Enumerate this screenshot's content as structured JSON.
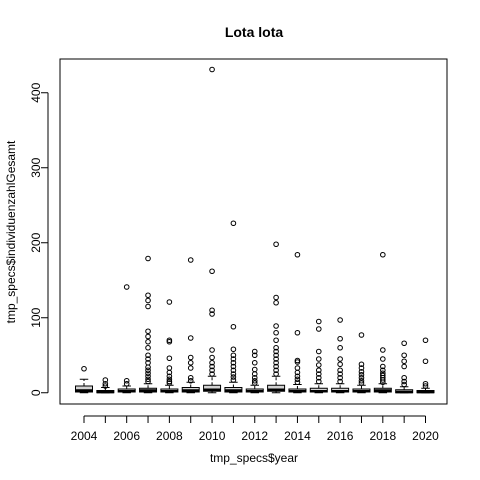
{
  "chart_data": {
    "type": "boxplot",
    "title": "Lota lota",
    "xlabel": "tmp_specs$year",
    "ylabel": "tmp_specs$individuenzahlGesamt",
    "ylim": [
      -15,
      445
    ],
    "y_ticks": [
      0,
      100,
      200,
      300,
      400
    ],
    "x_tick_labels": [
      "2004",
      "2006",
      "2008",
      "2010",
      "2012",
      "2014",
      "2016",
      "2018",
      "2020"
    ],
    "categories": [
      "2004",
      "2005",
      "2006",
      "2007",
      "2008",
      "2009",
      "2010",
      "2011",
      "2012",
      "2013",
      "2014",
      "2015",
      "2016",
      "2017",
      "2018",
      "2019",
      "2020"
    ],
    "boxes": [
      {
        "year": "2004",
        "min": 0,
        "q1": 1,
        "median": 3,
        "q3": 9,
        "max": 18,
        "outliers": [
          32
        ]
      },
      {
        "year": "2005",
        "min": 0,
        "q1": 0,
        "median": 1,
        "q3": 3,
        "max": 7,
        "outliers": [
          9,
          12,
          17
        ]
      },
      {
        "year": "2006",
        "min": 0,
        "q1": 1,
        "median": 2,
        "q3": 5,
        "max": 9,
        "outliers": [
          12,
          16,
          141
        ]
      },
      {
        "year": "2007",
        "min": 0,
        "q1": 1,
        "median": 3,
        "q3": 6,
        "max": 12,
        "outliers": [
          15,
          18,
          22,
          26,
          30,
          34,
          40,
          45,
          50,
          60,
          68,
          75,
          82,
          115,
          123,
          130,
          179
        ]
      },
      {
        "year": "2008",
        "min": 0,
        "q1": 1,
        "median": 2,
        "q3": 5,
        "max": 10,
        "outliers": [
          13,
          15,
          18,
          22,
          27,
          33,
          46,
          68,
          70,
          121
        ]
      },
      {
        "year": "2009",
        "min": 0,
        "q1": 1,
        "median": 3,
        "q3": 7,
        "max": 14,
        "outliers": [
          16,
          20,
          33,
          40,
          47,
          73,
          177
        ]
      },
      {
        "year": "2010",
        "min": 0,
        "q1": 2,
        "median": 4,
        "q3": 10,
        "max": 22,
        "outliers": [
          25,
          30,
          35,
          40,
          47,
          57,
          105,
          110,
          162,
          431
        ]
      },
      {
        "year": "2011",
        "min": 0,
        "q1": 1,
        "median": 3,
        "q3": 7,
        "max": 14,
        "outliers": [
          17,
          21,
          25,
          30,
          35,
          40,
          45,
          50,
          58,
          88,
          226
        ]
      },
      {
        "year": "2012",
        "min": 0,
        "q1": 1,
        "median": 2,
        "q3": 5,
        "max": 10,
        "outliers": [
          13,
          16,
          20,
          25,
          31,
          40,
          50,
          55
        ]
      },
      {
        "year": "2013",
        "min": 0,
        "q1": 2,
        "median": 4,
        "q3": 10,
        "max": 22,
        "outliers": [
          25,
          30,
          35,
          40,
          45,
          50,
          55,
          60,
          70,
          80,
          89,
          120,
          127,
          198
        ]
      },
      {
        "year": "2014",
        "min": 0,
        "q1": 1,
        "median": 2,
        "q3": 5,
        "max": 11,
        "outliers": [
          14,
          18,
          22,
          27,
          33,
          41,
          43,
          80,
          184
        ]
      },
      {
        "year": "2015",
        "min": 0,
        "q1": 1,
        "median": 2,
        "q3": 6,
        "max": 12,
        "outliers": [
          15,
          20,
          25,
          30,
          37,
          45,
          55,
          85,
          95
        ]
      },
      {
        "year": "2016",
        "min": 0,
        "q1": 1,
        "median": 2,
        "q3": 6,
        "max": 12,
        "outliers": [
          15,
          20,
          25,
          30,
          38,
          45,
          60,
          72,
          97
        ]
      },
      {
        "year": "2017",
        "min": 0,
        "q1": 1,
        "median": 2,
        "q3": 5,
        "max": 10,
        "outliers": [
          13,
          16,
          20,
          24,
          28,
          33,
          38,
          77
        ]
      },
      {
        "year": "2018",
        "min": 0,
        "q1": 1,
        "median": 3,
        "q3": 6,
        "max": 12,
        "outliers": [
          14,
          17,
          20,
          23,
          26,
          30,
          35,
          45,
          57,
          184
        ]
      },
      {
        "year": "2019",
        "min": 0,
        "q1": 0,
        "median": 1,
        "q3": 4,
        "max": 8,
        "outliers": [
          11,
          15,
          20,
          35,
          42,
          50,
          66
        ]
      },
      {
        "year": "2020",
        "min": 0,
        "q1": 0,
        "median": 1,
        "q3": 3,
        "max": 6,
        "outliers": [
          9,
          12,
          42,
          70
        ]
      }
    ]
  }
}
